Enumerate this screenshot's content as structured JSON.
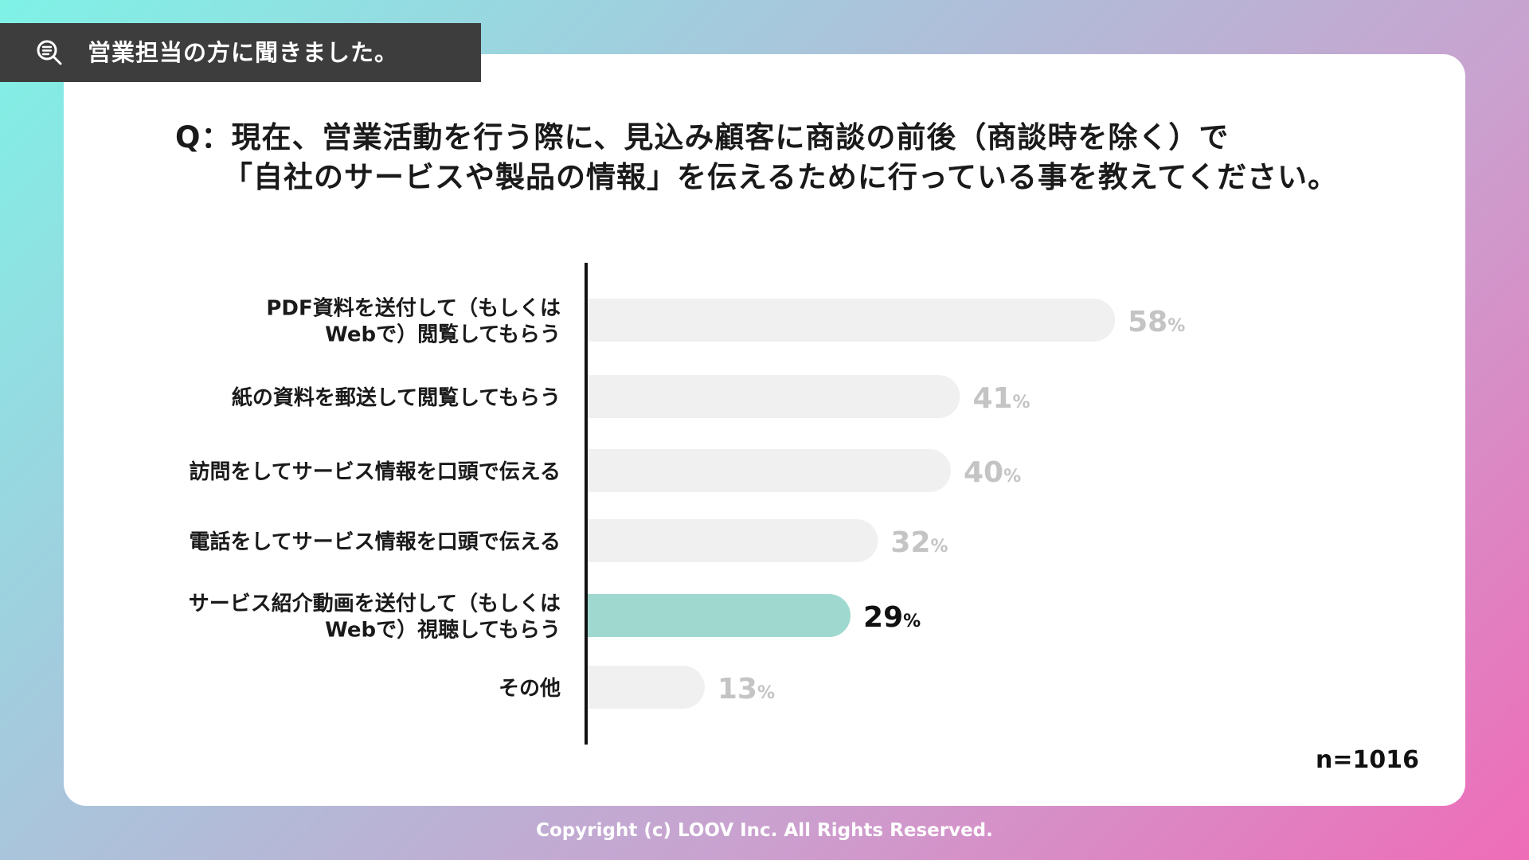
{
  "header": {
    "tag_text": "営業担当の方に聞きました。",
    "tag_icon": "search-list-icon",
    "question_line1": "Q：現在、営業活動を行う際に、見込み顧客に商談の前後（商談時を除く）で",
    "question_line2": "「自社のサービスや製品の情報」を伝えるために行っている事を教えてください。"
  },
  "chart_data": {
    "type": "bar",
    "orientation": "horizontal",
    "categories": [
      [
        "PDF資料を送付して（もしくは",
        "Webで）閲覧してもらう"
      ],
      [
        "紙の資料を郵送して閲覧してもらう"
      ],
      [
        "訪問をしてサービス情報を口頭で伝える"
      ],
      [
        "電話をしてサービス情報を口頭で伝える"
      ],
      [
        "サービス紹介動画を送付して（もしくは",
        "Webで）視聴してもらう"
      ],
      [
        "その他"
      ]
    ],
    "values": [
      58,
      41,
      40,
      32,
      29,
      13
    ],
    "unit": "%",
    "highlight_index": 4,
    "xlim": [
      0,
      100
    ],
    "colors": {
      "bar": "#f0f0f0",
      "highlight_bar": "#9fd8cf",
      "label": "#1a1a1a",
      "value": "#c4c4c4",
      "highlight_value": "#111111",
      "axis": "#111111"
    },
    "note": "n=1016"
  },
  "footer": {
    "copyright": "Copyright (c) LOOV Inc. All Rights Reserved."
  }
}
